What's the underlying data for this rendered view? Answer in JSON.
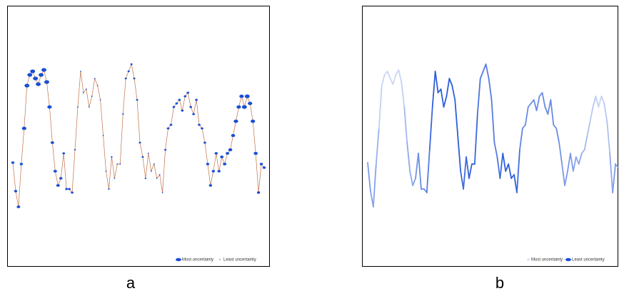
{
  "chart_data": [
    {
      "type": "uncertainty-dots",
      "caption": "a",
      "line_color": "#c0714a",
      "color": "#1a4fd6",
      "legend": [
        "Most uncertainty",
        "Least uncertainty"
      ],
      "ylim": [
        0,
        365
      ],
      "values": [
        145,
        105,
        83,
        143,
        193,
        253,
        268,
        273,
        263,
        255,
        268,
        275,
        258,
        223,
        173,
        133,
        113,
        123,
        158,
        108,
        108,
        103,
        163,
        223,
        273,
        243,
        248,
        223,
        238,
        263,
        253,
        233,
        183,
        133,
        108,
        153,
        123,
        143,
        143,
        213,
        263,
        273,
        283,
        263,
        233,
        173,
        153,
        123,
        158,
        133,
        143,
        123,
        128,
        103,
        163,
        193,
        198,
        223,
        228,
        233,
        218,
        238,
        243,
        223,
        213,
        233,
        198,
        193,
        173,
        143,
        113,
        133,
        158,
        133,
        153,
        143,
        158,
        163,
        183,
        203,
        223,
        238,
        223,
        238,
        228,
        203,
        158,
        103,
        143,
        138
      ],
      "uncertainty": [
        0.5,
        0.5,
        0.6,
        0.5,
        0.8,
        0.9,
        0.9,
        0.9,
        0.9,
        0.9,
        0.9,
        0.9,
        0.9,
        0.8,
        0.6,
        0.6,
        0.6,
        0.5,
        0.4,
        0.4,
        0.4,
        0.4,
        0.2,
        0.1,
        0.1,
        0.1,
        0.1,
        0.1,
        0.1,
        0.1,
        0.1,
        0.1,
        0.1,
        0.1,
        0.2,
        0.2,
        0.1,
        0.1,
        0.1,
        0.2,
        0.3,
        0.3,
        0.3,
        0.3,
        0.3,
        0.3,
        0.3,
        0.2,
        0.1,
        0.1,
        0.1,
        0.1,
        0.1,
        0.1,
        0.3,
        0.4,
        0.4,
        0.4,
        0.4,
        0.4,
        0.4,
        0.4,
        0.4,
        0.4,
        0.4,
        0.4,
        0.4,
        0.4,
        0.4,
        0.5,
        0.5,
        0.5,
        0.5,
        0.5,
        0.6,
        0.6,
        0.6,
        0.7,
        0.7,
        0.8,
        0.8,
        0.8,
        0.9,
        0.9,
        0.8,
        0.8,
        0.7,
        0.5,
        0.5,
        0.5
      ]
    },
    {
      "type": "uncertainty-line",
      "caption": "b",
      "color": "#1a4fd6",
      "light_color": "#dfe5f8",
      "legend": [
        "Most uncertainty",
        "Least uncertainty"
      ],
      "ylim": [
        0,
        365
      ],
      "values": [
        145,
        105,
        83,
        143,
        193,
        253,
        268,
        273,
        263,
        255,
        268,
        275,
        258,
        223,
        173,
        133,
        113,
        123,
        158,
        108,
        108,
        103,
        163,
        223,
        273,
        243,
        248,
        223,
        238,
        263,
        253,
        233,
        183,
        133,
        108,
        153,
        123,
        143,
        143,
        213,
        263,
        273,
        283,
        263,
        233,
        173,
        153,
        123,
        158,
        133,
        143,
        123,
        128,
        103,
        163,
        193,
        198,
        223,
        228,
        233,
        218,
        238,
        243,
        223,
        213,
        233,
        198,
        193,
        173,
        143,
        113,
        133,
        158,
        133,
        153,
        143,
        158,
        163,
        183,
        203,
        223,
        238,
        223,
        238,
        228,
        203,
        158,
        103,
        143,
        138
      ],
      "uncertainty": [
        0.5,
        0.5,
        0.6,
        0.5,
        0.8,
        0.9,
        0.9,
        0.9,
        0.9,
        0.9,
        0.9,
        0.9,
        0.9,
        0.8,
        0.6,
        0.6,
        0.6,
        0.5,
        0.4,
        0.4,
        0.4,
        0.4,
        0.2,
        0.1,
        0.1,
        0.1,
        0.1,
        0.1,
        0.1,
        0.1,
        0.1,
        0.1,
        0.1,
        0.1,
        0.2,
        0.2,
        0.1,
        0.1,
        0.1,
        0.2,
        0.3,
        0.3,
        0.3,
        0.3,
        0.3,
        0.3,
        0.3,
        0.2,
        0.1,
        0.1,
        0.1,
        0.1,
        0.1,
        0.1,
        0.3,
        0.4,
        0.4,
        0.4,
        0.4,
        0.4,
        0.4,
        0.4,
        0.4,
        0.4,
        0.4,
        0.4,
        0.4,
        0.4,
        0.4,
        0.5,
        0.5,
        0.5,
        0.5,
        0.5,
        0.6,
        0.6,
        0.6,
        0.7,
        0.7,
        0.8,
        0.8,
        0.8,
        0.9,
        0.9,
        0.8,
        0.8,
        0.7,
        0.5,
        0.5,
        0.5
      ]
    }
  ]
}
